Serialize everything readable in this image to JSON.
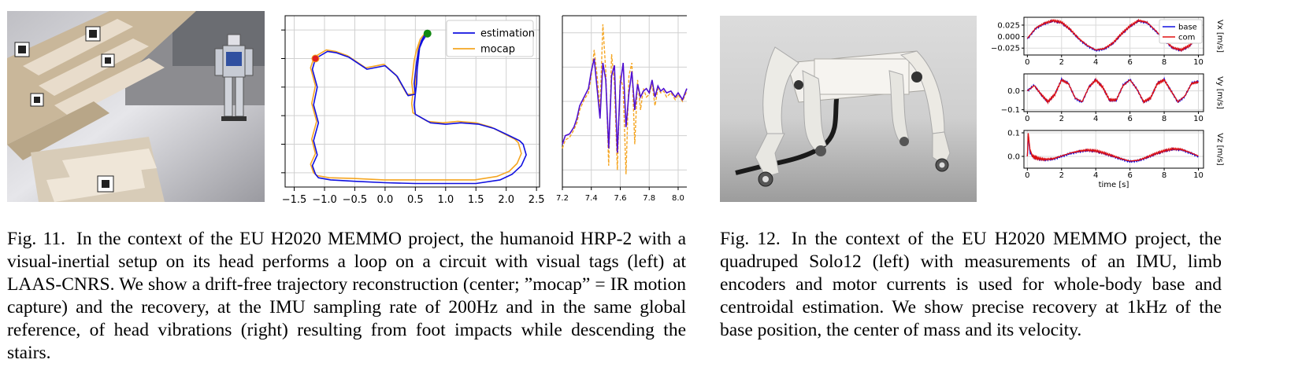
{
  "figure11": {
    "photo_icon": "humanoid-robot-on-stairs-photo",
    "caption_label": "Fig. 11.",
    "caption_text": "In the context of the EU H2020 MEMMO project, the humanoid HRP-2 with a visual-inertial setup on its head performs a loop on a circuit with visual tags (left) at LAAS-CNRS. We show a drift-free trajectory reconstruction (center; ”mocap” = IR motion capture) and the recovery, at the IMU sampling rate of 200Hz and in the same global reference, of head vibrations (right) resulting from foot impacts while descending the stairs."
  },
  "figure12": {
    "photo_icon": "quadruped-robot-photo",
    "caption_label": "Fig. 12.",
    "caption_text": "In the context of the EU H2020 MEMMO project, the quadruped Solo12 (left) with measurements of an IMU, limb encoders and motor currents is used for whole-body base and centroidal estimation. We show precise recovery at 1kHz of the base position, the center of mass and its velocity."
  },
  "chart_data": [
    {
      "type": "line",
      "id": "trajectory",
      "xticks": [
        "−1.5",
        "−1.0",
        "−0.5",
        "0.0",
        "0.5",
        "1.0",
        "1.5",
        "2.0",
        "2.5"
      ],
      "xlim": [
        -1.65,
        2.55
      ],
      "ylim": [
        -1.6,
        0.8
      ],
      "legend": {
        "placement": "top-right",
        "entries": [
          "estimation",
          "mocap"
        ]
      },
      "grid": true,
      "colors": {
        "estimation": "#1010e0",
        "mocap": "#f5a623",
        "start": "#118811",
        "end": "#e02020"
      },
      "series": [
        {
          "name": "estimation",
          "x": [
            0.7,
            0.62,
            0.57,
            0.55,
            0.53,
            0.52,
            0.5,
            0.38,
            0.2,
            0.0,
            -0.3,
            -0.6,
            -0.8,
            -0.95,
            -1.05,
            -1.15,
            -1.2,
            -1.12,
            -1.18,
            -1.1,
            -1.18,
            -1.12,
            -1.2,
            -1.15,
            -1.1,
            -0.9,
            -0.5,
            0.0,
            0.5,
            1.0,
            1.5,
            1.9,
            2.1,
            2.25,
            2.33,
            2.28,
            2.22,
            2.05,
            1.8,
            1.55,
            1.25,
            1.0,
            0.75,
            0.5,
            0.48,
            0.5,
            0.48,
            0.5,
            0.52,
            0.55,
            0.6,
            0.7
          ],
          "y": [
            0.55,
            0.45,
            0.35,
            0.2,
            0.05,
            -0.15,
            -0.3,
            -0.32,
            -0.05,
            0.1,
            0.05,
            0.22,
            0.28,
            0.3,
            0.25,
            0.2,
            0.05,
            -0.2,
            -0.45,
            -0.7,
            -0.95,
            -1.15,
            -1.3,
            -1.42,
            -1.47,
            -1.5,
            -1.52,
            -1.54,
            -1.55,
            -1.55,
            -1.55,
            -1.5,
            -1.42,
            -1.3,
            -1.15,
            -1.0,
            -0.95,
            -0.88,
            -0.78,
            -0.72,
            -0.7,
            -0.72,
            -0.7,
            -0.58,
            -0.45,
            -0.3,
            -0.15,
            0.0,
            0.15,
            0.3,
            0.45,
            0.6
          ]
        },
        {
          "name": "mocap",
          "x": [
            0.7,
            0.6,
            0.55,
            0.53,
            0.51,
            0.5,
            0.48,
            0.36,
            0.18,
            -0.02,
            -0.32,
            -0.62,
            -0.82,
            -0.97,
            -1.07,
            -1.17,
            -1.23,
            -1.15,
            -1.21,
            -1.13,
            -1.21,
            -1.15,
            -1.23,
            -1.18,
            -1.12,
            -0.92,
            -0.52,
            -0.02,
            0.48,
            0.98,
            1.48,
            1.85,
            2.05,
            2.18,
            2.25,
            2.2,
            2.14,
            1.98,
            1.75,
            1.5,
            1.2,
            0.95,
            0.7,
            0.46,
            0.44,
            0.46,
            0.44,
            0.46,
            0.48,
            0.52,
            0.58,
            0.7
          ],
          "y": [
            0.55,
            0.45,
            0.35,
            0.2,
            0.05,
            -0.15,
            -0.3,
            -0.3,
            -0.03,
            0.12,
            0.07,
            0.24,
            0.3,
            0.32,
            0.27,
            0.22,
            0.07,
            -0.18,
            -0.43,
            -0.68,
            -0.93,
            -1.13,
            -1.28,
            -1.4,
            -1.44,
            -1.47,
            -1.48,
            -1.5,
            -1.5,
            -1.5,
            -1.5,
            -1.45,
            -1.38,
            -1.27,
            -1.13,
            -0.98,
            -0.93,
            -0.86,
            -0.76,
            -0.7,
            -0.68,
            -0.7,
            -0.68,
            -0.56,
            -0.43,
            -0.28,
            -0.13,
            0.02,
            0.17,
            0.32,
            0.47,
            0.6
          ]
        }
      ]
    },
    {
      "type": "line",
      "id": "vibrations",
      "xticks": [
        "7.2",
        "7.4",
        "7.6",
        "7.8",
        "8.0"
      ],
      "xlim": [
        7.2,
        8.06
      ],
      "ylim": [
        -1.0,
        1.0
      ],
      "grid": true,
      "series": [
        {
          "name": "estimation",
          "x": [
            7.2,
            7.22,
            7.25,
            7.28,
            7.3,
            7.32,
            7.35,
            7.38,
            7.4,
            7.42,
            7.44,
            7.46,
            7.48,
            7.5,
            7.52,
            7.54,
            7.56,
            7.58,
            7.6,
            7.62,
            7.64,
            7.66,
            7.68,
            7.7,
            7.72,
            7.74,
            7.76,
            7.78,
            7.8,
            7.82,
            7.84,
            7.86,
            7.88,
            7.9,
            7.92,
            7.95,
            7.98,
            8.0,
            8.03,
            8.06
          ],
          "y": [
            -0.5,
            -0.4,
            -0.38,
            -0.3,
            -0.2,
            -0.05,
            0.05,
            0.15,
            0.35,
            0.5,
            0.15,
            -0.2,
            0.45,
            0.25,
            -0.55,
            0.3,
            0.42,
            -0.6,
            0.2,
            0.45,
            -0.3,
            0.1,
            0.35,
            -0.1,
            0.2,
            0.05,
            0.12,
            0.15,
            0.1,
            0.25,
            0.05,
            0.18,
            0.12,
            0.15,
            0.1,
            0.12,
            0.05,
            0.1,
            0.02,
            0.15
          ]
        },
        {
          "name": "mocap",
          "x": [
            7.2,
            7.22,
            7.25,
            7.28,
            7.3,
            7.32,
            7.35,
            7.38,
            7.4,
            7.42,
            7.44,
            7.46,
            7.48,
            7.5,
            7.52,
            7.54,
            7.56,
            7.58,
            7.6,
            7.62,
            7.64,
            7.66,
            7.68,
            7.7,
            7.72,
            7.74,
            7.76,
            7.78,
            7.8,
            7.82,
            7.84,
            7.86,
            7.88,
            7.9,
            7.92,
            7.95,
            7.98,
            8.0,
            8.03,
            8.06
          ],
          "y": [
            -0.55,
            -0.45,
            -0.42,
            -0.33,
            -0.25,
            -0.1,
            0.02,
            0.1,
            0.3,
            0.6,
            0.3,
            -0.1,
            0.9,
            0.35,
            -0.75,
            0.55,
            0.2,
            -0.8,
            0.3,
            0.15,
            -0.85,
            0.3,
            0.45,
            -0.5,
            0.25,
            -0.1,
            0.15,
            0.05,
            0.08,
            0.2,
            -0.05,
            0.15,
            0.1,
            0.12,
            0.05,
            0.1,
            0.02,
            0.08,
            0.0,
            0.12
          ]
        }
      ]
    },
    {
      "type": "line",
      "id": "vx",
      "ylabel": "Vx [m/s]",
      "xticks": [
        "0",
        "2",
        "4",
        "6",
        "8",
        "10"
      ],
      "yticks": [
        "0.025",
        "0.000",
        "−0.025"
      ],
      "ytick_values": [
        0.025,
        0.0,
        -0.025
      ],
      "xlim": [
        -0.2,
        10.3
      ],
      "ylim": [
        -0.04,
        0.042
      ],
      "legend": {
        "placement": "top-right",
        "entries": [
          "base",
          "com"
        ]
      },
      "colors": {
        "base": "#1010e0",
        "com": "#e01010"
      },
      "grid": true,
      "series": [
        {
          "name": "base",
          "x": [
            0,
            0.5,
            1,
            1.5,
            2,
            2.5,
            3,
            3.5,
            4,
            4.5,
            5,
            5.5,
            6,
            6.5,
            7,
            7.5,
            8,
            8.5,
            9,
            9.5,
            10
          ],
          "y": [
            -0.005,
            0.018,
            0.028,
            0.034,
            0.03,
            0.015,
            -0.005,
            -0.02,
            -0.03,
            -0.027,
            -0.015,
            0.005,
            0.022,
            0.034,
            0.03,
            0.012,
            -0.008,
            -0.025,
            -0.03,
            -0.02,
            0.005
          ]
        },
        {
          "name": "com",
          "x": [
            0,
            0.5,
            1,
            1.5,
            2,
            2.5,
            3,
            3.5,
            4,
            4.5,
            5,
            5.5,
            6,
            6.5,
            7,
            7.5,
            8,
            8.5,
            9,
            9.5,
            10
          ],
          "y": [
            -0.004,
            0.019,
            0.029,
            0.035,
            0.031,
            0.016,
            -0.004,
            -0.019,
            -0.029,
            -0.026,
            -0.014,
            0.006,
            0.023,
            0.035,
            0.031,
            0.013,
            -0.007,
            -0.024,
            -0.029,
            -0.019,
            0.006
          ]
        }
      ]
    },
    {
      "type": "line",
      "id": "vy",
      "ylabel": "Vy [m/s]",
      "xticks": [
        "0",
        "2",
        "4",
        "6",
        "8",
        "10"
      ],
      "yticks": [
        "0.0",
        "−0.1"
      ],
      "ytick_values": [
        0.0,
        -0.1
      ],
      "xlim": [
        -0.2,
        10.3
      ],
      "ylim": [
        -0.11,
        0.09
      ],
      "grid": true,
      "series": [
        {
          "name": "base",
          "x": [
            0,
            0.4,
            0.8,
            1.2,
            1.6,
            2.0,
            2.4,
            2.8,
            3.2,
            3.6,
            4.0,
            4.4,
            4.8,
            5.2,
            5.6,
            6.0,
            6.4,
            6.8,
            7.2,
            7.6,
            8.0,
            8.4,
            8.8,
            9.2,
            9.6,
            10
          ],
          "y": [
            0.0,
            0.03,
            -0.02,
            -0.06,
            -0.02,
            0.06,
            0.04,
            -0.04,
            -0.06,
            0.02,
            0.06,
            0.02,
            -0.05,
            -0.05,
            0.03,
            0.06,
            0.01,
            -0.06,
            -0.04,
            0.04,
            0.06,
            0.0,
            -0.06,
            -0.03,
            0.04,
            0.05
          ]
        },
        {
          "name": "com",
          "x": [
            0,
            0.4,
            0.8,
            1.2,
            1.6,
            2.0,
            2.4,
            2.8,
            3.2,
            3.6,
            4.0,
            4.4,
            4.8,
            5.2,
            5.6,
            6.0,
            6.4,
            6.8,
            7.2,
            7.6,
            8.0,
            8.4,
            8.8,
            9.2,
            9.6,
            10
          ],
          "y": [
            0.0,
            0.028,
            -0.018,
            -0.058,
            -0.02,
            0.058,
            0.038,
            -0.038,
            -0.058,
            0.02,
            0.058,
            0.02,
            -0.048,
            -0.048,
            0.028,
            0.058,
            0.01,
            -0.058,
            -0.038,
            0.038,
            0.058,
            0.0,
            -0.058,
            -0.028,
            0.038,
            0.048
          ]
        }
      ]
    },
    {
      "type": "line",
      "id": "vz",
      "ylabel": "Vz [m/s]",
      "xlabel": "time [s]",
      "xticks": [
        "0",
        "2",
        "4",
        "6",
        "8",
        "10"
      ],
      "yticks": [
        "0.1",
        "0.0"
      ],
      "ytick_values": [
        0.1,
        0.0
      ],
      "xlim": [
        -0.2,
        10.3
      ],
      "ylim": [
        -0.05,
        0.11
      ],
      "grid": true,
      "series": [
        {
          "name": "base",
          "x": [
            0,
            0.05,
            0.15,
            0.3,
            0.6,
            1,
            1.5,
            2,
            2.5,
            3,
            3.5,
            4,
            4.5,
            5,
            5.5,
            6,
            6.5,
            7,
            7.5,
            8,
            8.5,
            9,
            9.5,
            10
          ],
          "y": [
            0.0,
            0.09,
            0.02,
            0.0,
            -0.01,
            -0.015,
            -0.012,
            0.0,
            0.012,
            0.02,
            0.025,
            0.022,
            0.012,
            0.0,
            -0.012,
            -0.022,
            -0.018,
            -0.005,
            0.01,
            0.022,
            0.03,
            0.028,
            0.015,
            0.0
          ]
        },
        {
          "name": "com",
          "x": [
            0,
            0.05,
            0.15,
            0.3,
            0.6,
            1,
            1.5,
            2,
            2.5,
            3,
            3.5,
            4,
            4.5,
            5,
            5.5,
            6,
            6.5,
            7,
            7.5,
            8,
            8.5,
            9,
            9.5,
            10
          ],
          "y": [
            0.0,
            0.1,
            0.03,
            0.0,
            -0.008,
            -0.013,
            -0.01,
            0.002,
            0.014,
            0.022,
            0.027,
            0.024,
            0.014,
            0.002,
            -0.01,
            -0.02,
            -0.016,
            -0.003,
            0.012,
            0.024,
            0.032,
            0.03,
            0.017,
            0.002
          ]
        }
      ]
    }
  ]
}
